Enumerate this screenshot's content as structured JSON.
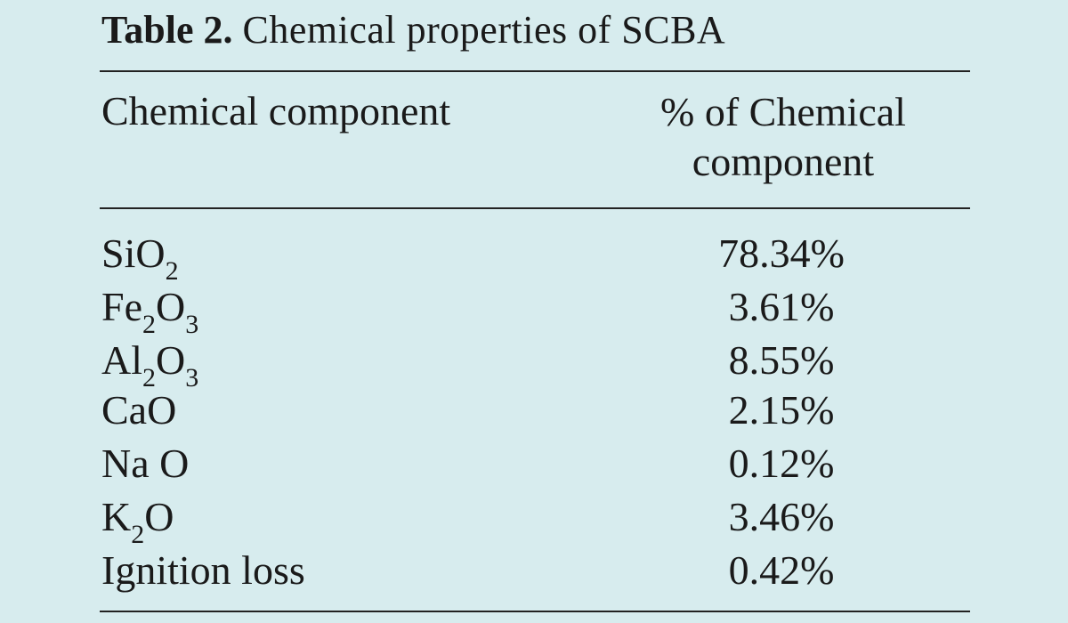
{
  "title": {
    "label": "Table 2.",
    "text": "Chemical properties of SCBA"
  },
  "table": {
    "headers": [
      "Chemical component",
      "% of Chemical component"
    ],
    "rows": [
      {
        "component": [
          {
            "text": "SiO"
          },
          {
            "sub": "2"
          }
        ],
        "percent": "78.34%"
      },
      {
        "component": [
          {
            "text": "Fe"
          },
          {
            "sub": "2"
          },
          {
            "text": "O"
          },
          {
            "sub": "3"
          }
        ],
        "percent": "3.61%"
      },
      {
        "component": [
          {
            "text": "Al"
          },
          {
            "sub": "2"
          },
          {
            "text": "O"
          },
          {
            "sub": "3"
          }
        ],
        "percent": "8.55%"
      },
      {
        "component": [
          {
            "text": "CaO"
          }
        ],
        "percent": "2.15%"
      },
      {
        "component": [
          {
            "text": "Na O"
          }
        ],
        "percent": "0.12%"
      },
      {
        "component": [
          {
            "text": "K"
          },
          {
            "sub": "2"
          },
          {
            "text": "O"
          }
        ],
        "percent": "3.46%"
      },
      {
        "component": [
          {
            "text": "Ignition loss"
          }
        ],
        "percent": "0.42%"
      }
    ]
  }
}
